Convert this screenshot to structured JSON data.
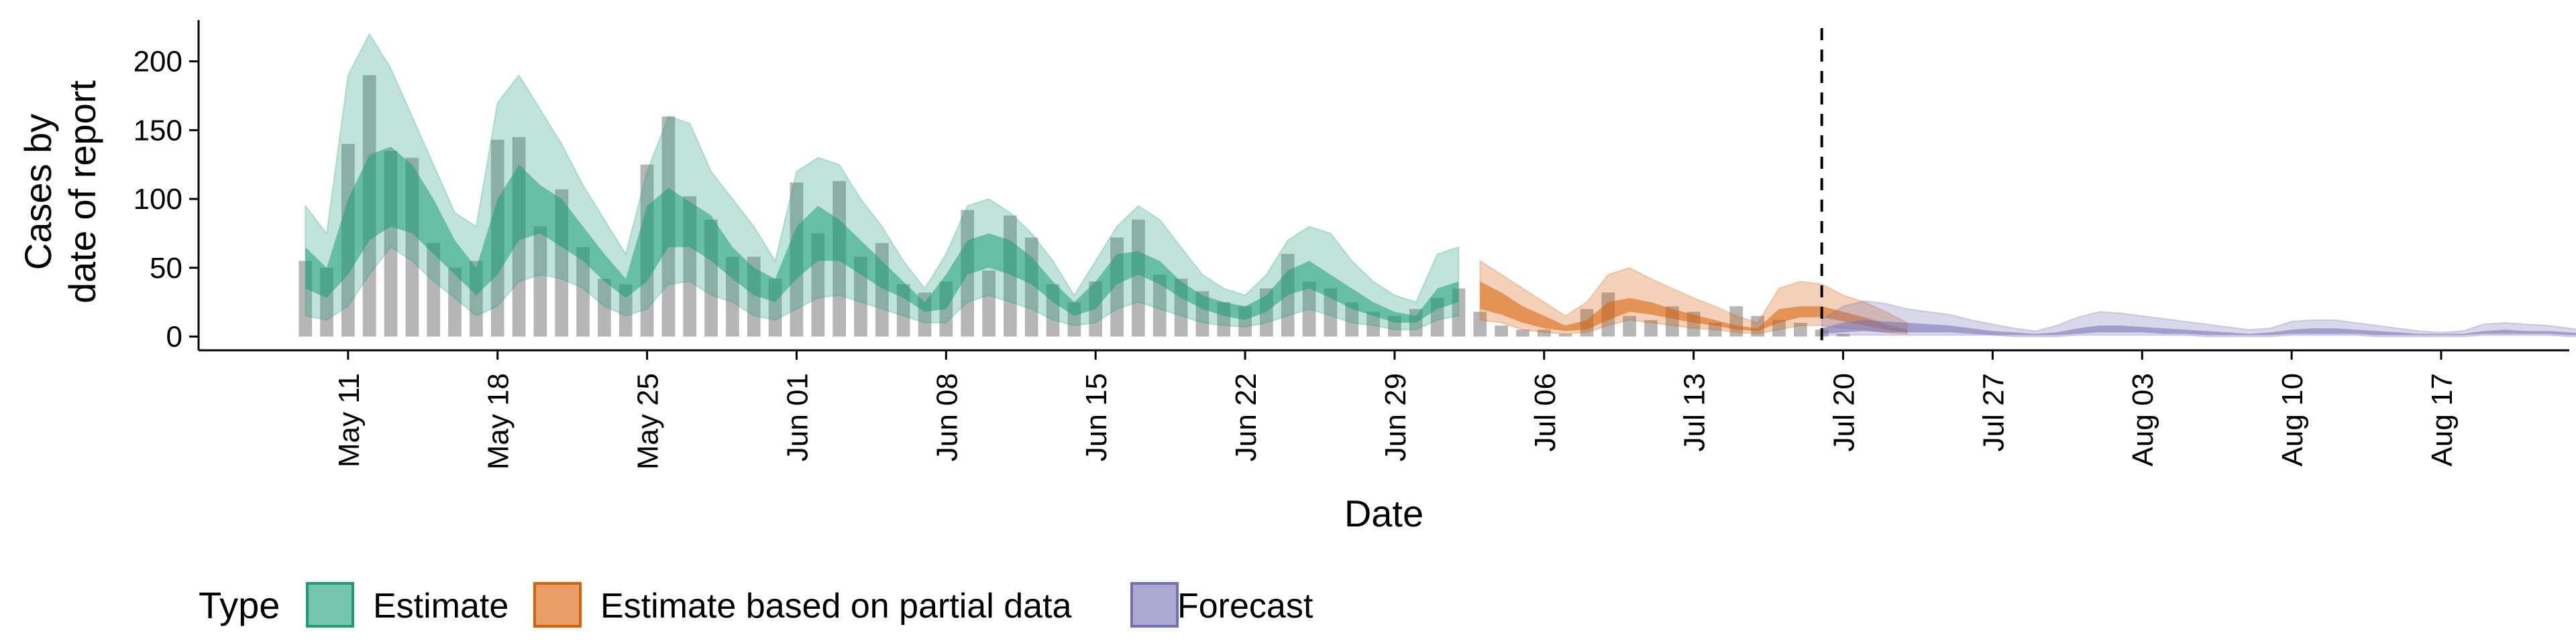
{
  "chart_data": {
    "type": "area",
    "title": "",
    "xlabel": "Date",
    "ylabel_lines": [
      "Cases by",
      "date of report"
    ],
    "ylim": [
      -10,
      230
    ],
    "yticks": [
      0,
      50,
      100,
      150,
      200
    ],
    "xlim": [
      "2020-05-04",
      "2020-08-23"
    ],
    "xticks": [
      {
        "date": "2020-05-11",
        "label": "May 11"
      },
      {
        "date": "2020-05-18",
        "label": "May 18"
      },
      {
        "date": "2020-05-25",
        "label": "May 25"
      },
      {
        "date": "2020-06-01",
        "label": "Jun 01"
      },
      {
        "date": "2020-06-08",
        "label": "Jun 08"
      },
      {
        "date": "2020-06-15",
        "label": "Jun 15"
      },
      {
        "date": "2020-06-22",
        "label": "Jun 22"
      },
      {
        "date": "2020-06-29",
        "label": "Jun 29"
      },
      {
        "date": "2020-07-06",
        "label": "Jul 06"
      },
      {
        "date": "2020-07-13",
        "label": "Jul 13"
      },
      {
        "date": "2020-07-20",
        "label": "Jul 20"
      },
      {
        "date": "2020-07-27",
        "label": "Jul 27"
      },
      {
        "date": "2020-08-03",
        "label": "Aug 03"
      },
      {
        "date": "2020-08-10",
        "label": "Aug 10"
      },
      {
        "date": "2020-08-17",
        "label": "Aug 17"
      }
    ],
    "forecast_start": "2020-07-19",
    "bars": {
      "start": "2020-05-09",
      "values": [
        55,
        50,
        140,
        190,
        135,
        130,
        68,
        50,
        55,
        143,
        145,
        80,
        107,
        65,
        42,
        38,
        125,
        160,
        102,
        85,
        58,
        58,
        42,
        112,
        75,
        113,
        58,
        68,
        38,
        32,
        40,
        92,
        48,
        88,
        72,
        38,
        25,
        40,
        72,
        85,
        45,
        42,
        33,
        25,
        22,
        35,
        60,
        40,
        35,
        25,
        18,
        15,
        20,
        28,
        35,
        18,
        8,
        5,
        5,
        2,
        20,
        32,
        15,
        12,
        22,
        18,
        10,
        22,
        15,
        12,
        10,
        5,
        2
      ]
    },
    "series": [
      {
        "name": "Estimate",
        "color": "#1b9e77",
        "start": "2020-05-09",
        "outer_lower": [
          15,
          12,
          22,
          45,
          65,
          55,
          40,
          28,
          15,
          22,
          40,
          45,
          42,
          35,
          22,
          15,
          20,
          38,
          40,
          30,
          25,
          15,
          12,
          20,
          28,
          30,
          25,
          20,
          15,
          10,
          10,
          25,
          30,
          25,
          20,
          12,
          8,
          10,
          20,
          25,
          20,
          15,
          10,
          8,
          7,
          10,
          15,
          20,
          15,
          10,
          8,
          5,
          5,
          12,
          15
        ],
        "inner_lower": [
          35,
          28,
          45,
          70,
          80,
          75,
          60,
          45,
          30,
          45,
          70,
          75,
          65,
          55,
          40,
          28,
          40,
          65,
          65,
          55,
          42,
          30,
          25,
          42,
          55,
          55,
          45,
          35,
          28,
          18,
          20,
          45,
          50,
          45,
          38,
          25,
          15,
          20,
          38,
          45,
          38,
          28,
          20,
          15,
          12,
          18,
          30,
          35,
          28,
          20,
          15,
          10,
          10,
          20,
          25
        ],
        "inner_upper": [
          65,
          50,
          100,
          132,
          138,
          125,
          100,
          70,
          50,
          100,
          125,
          110,
          100,
          80,
          60,
          42,
          95,
          108,
          98,
          88,
          65,
          50,
          42,
          80,
          95,
          85,
          70,
          55,
          40,
          25,
          45,
          70,
          75,
          70,
          58,
          40,
          25,
          40,
          60,
          62,
          55,
          40,
          30,
          25,
          22,
          30,
          48,
          55,
          45,
          35,
          25,
          18,
          15,
          35,
          40
        ],
        "outer_upper": [
          95,
          75,
          190,
          220,
          195,
          160,
          125,
          90,
          80,
          170,
          190,
          165,
          140,
          110,
          85,
          60,
          120,
          160,
          155,
          120,
          100,
          80,
          55,
          120,
          130,
          125,
          100,
          80,
          55,
          35,
          60,
          95,
          100,
          90,
          75,
          55,
          30,
          55,
          80,
          95,
          85,
          65,
          45,
          35,
          30,
          45,
          70,
          80,
          75,
          55,
          40,
          30,
          25,
          60,
          65
        ]
      },
      {
        "name": "Estimate based on partial data",
        "color": "#d95f02",
        "start": "2020-07-03",
        "outer_lower": [
          12,
          10,
          5,
          3,
          2,
          3,
          8,
          12,
          10,
          8,
          6,
          5,
          3,
          2,
          5,
          8,
          8,
          6,
          5,
          3,
          2
        ],
        "inner_lower": [
          20,
          16,
          10,
          6,
          4,
          5,
          12,
          18,
          16,
          13,
          10,
          8,
          5,
          4,
          10,
          14,
          14,
          11,
          8,
          5,
          3
        ],
        "inner_upper": [
          40,
          32,
          22,
          15,
          8,
          12,
          25,
          28,
          25,
          20,
          16,
          12,
          8,
          6,
          20,
          22,
          22,
          18,
          14,
          9,
          5
        ],
        "outer_upper": [
          55,
          45,
          35,
          25,
          15,
          25,
          45,
          50,
          42,
          35,
          28,
          22,
          15,
          10,
          35,
          40,
          38,
          30,
          25,
          18,
          10
        ]
      },
      {
        "name": "Forecast",
        "color": "#7570b3",
        "start": "2020-07-19",
        "outer_lower": [
          1,
          1,
          1,
          1,
          1,
          1,
          1,
          1,
          1,
          0,
          0,
          0,
          1,
          1,
          1,
          1,
          1,
          1,
          0,
          0,
          0,
          0,
          1,
          1,
          1,
          1,
          0,
          0,
          0,
          0,
          0,
          1,
          1,
          1,
          1,
          0,
          0,
          0,
          0,
          0,
          1
        ],
        "inner_lower": [
          2,
          3,
          4,
          3,
          3,
          3,
          3,
          2,
          1,
          1,
          1,
          1,
          2,
          3,
          3,
          3,
          2,
          2,
          1,
          1,
          1,
          1,
          2,
          2,
          2,
          2,
          1,
          1,
          1,
          1,
          1,
          2,
          2,
          2,
          2,
          1,
          1,
          1,
          1,
          1,
          1
        ],
        "inner_upper": [
          6,
          10,
          12,
          11,
          10,
          9,
          8,
          6,
          4,
          3,
          2,
          3,
          6,
          8,
          8,
          7,
          6,
          5,
          4,
          3,
          2,
          3,
          5,
          6,
          6,
          5,
          4,
          3,
          2,
          2,
          2,
          4,
          5,
          4,
          4,
          3,
          2,
          2,
          2,
          2,
          3
        ],
        "outer_upper": [
          12,
          22,
          26,
          24,
          20,
          18,
          16,
          12,
          9,
          6,
          4,
          8,
          14,
          18,
          17,
          15,
          13,
          11,
          9,
          7,
          5,
          6,
          11,
          12,
          12,
          10,
          8,
          6,
          4,
          3,
          4,
          9,
          10,
          9,
          8,
          6,
          4,
          3,
          3,
          4,
          8
        ]
      }
    ],
    "legend": {
      "title": "Type",
      "position": "bottom",
      "entries": [
        "Estimate",
        "Estimate based on partial data",
        "Forecast"
      ]
    }
  }
}
